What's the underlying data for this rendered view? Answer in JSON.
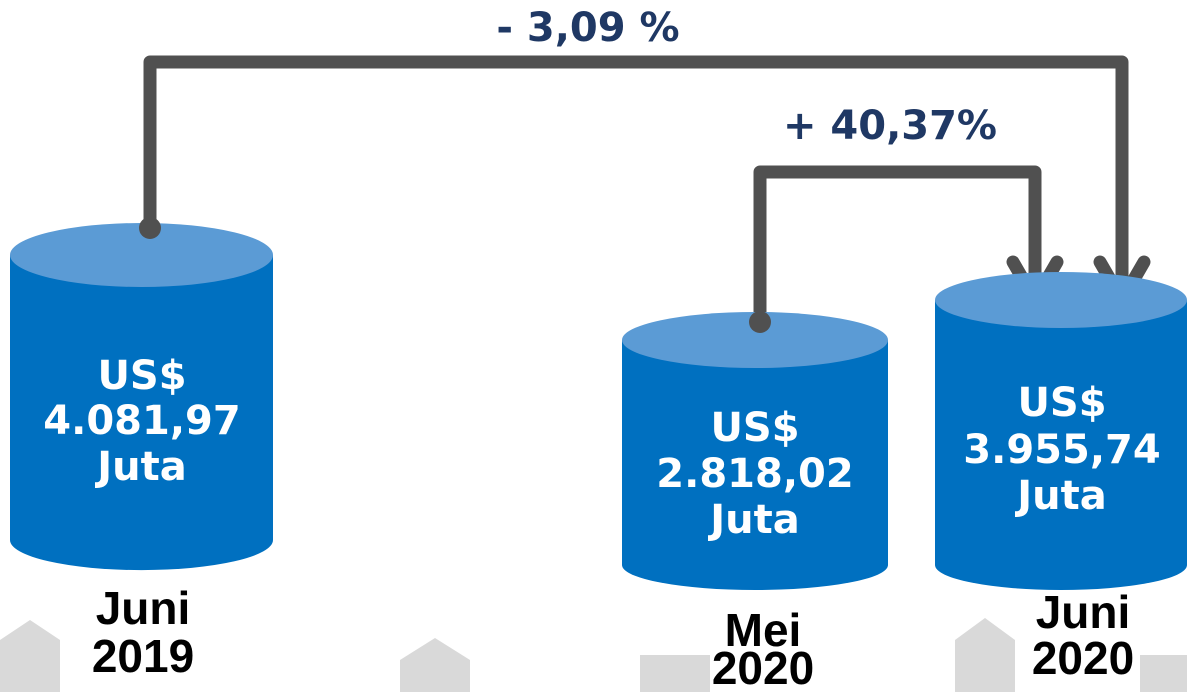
{
  "changes": [
    {
      "label": "- 3,09 %"
    },
    {
      "label": "+ 40,37%"
    }
  ],
  "nodes": [
    {
      "lines": [
        "US$",
        "4.081,97",
        "Juta"
      ],
      "period": [
        "Juni",
        "2019"
      ]
    },
    {
      "lines": [
        "US$",
        "2.818,02",
        "Juta"
      ],
      "period": [
        "Mei",
        "2020"
      ]
    },
    {
      "lines": [
        "US$",
        "3.955,74",
        "Juta"
      ],
      "period": [
        "Juni",
        "2020"
      ]
    }
  ]
}
